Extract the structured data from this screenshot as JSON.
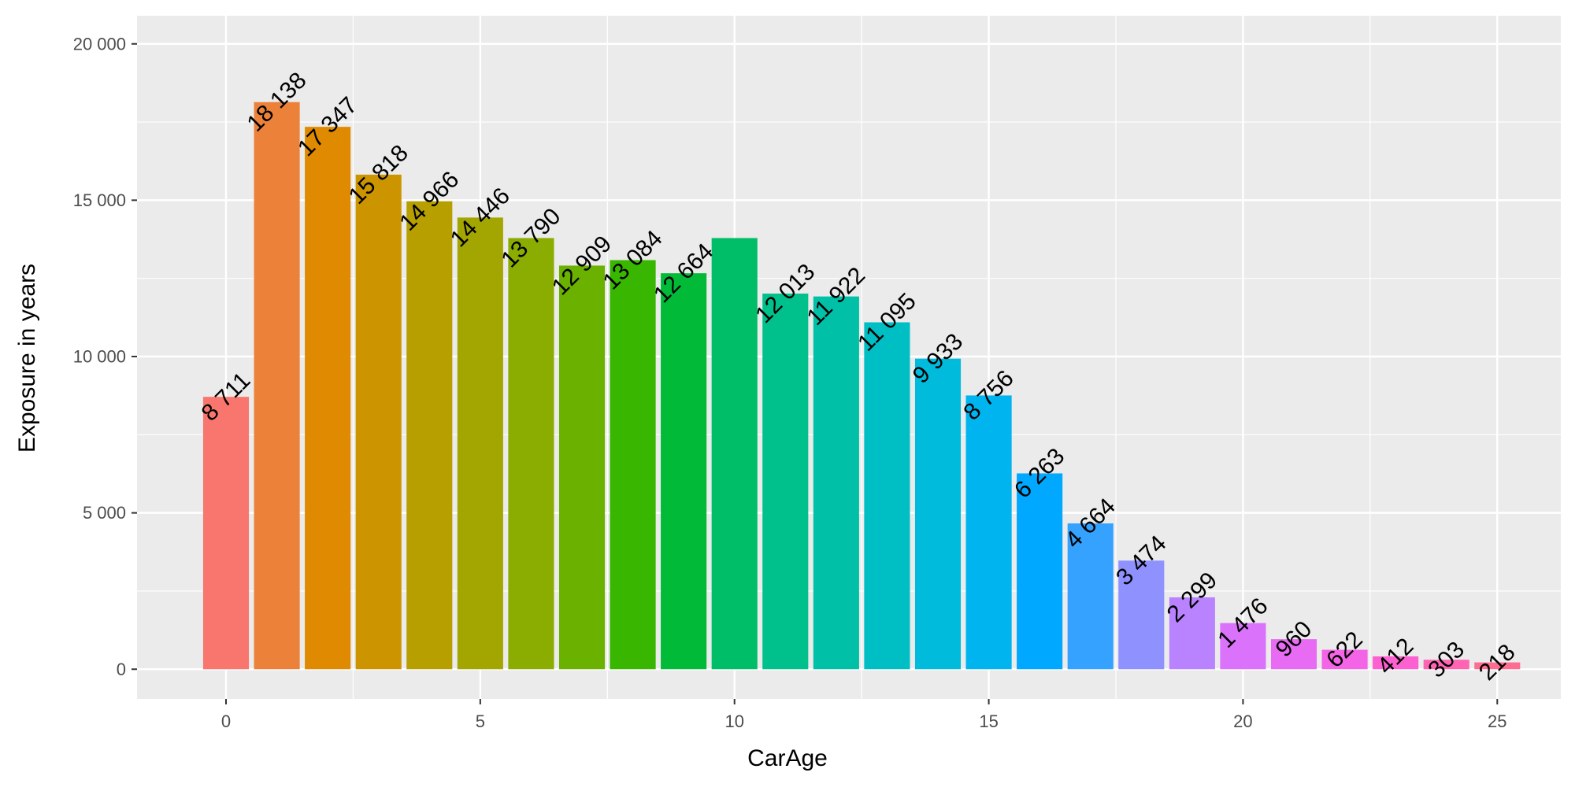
{
  "chart_data": {
    "type": "bar",
    "title": "",
    "xlabel": "CarAge",
    "ylabel": "Exposure in years",
    "x": [
      0,
      1,
      2,
      3,
      4,
      5,
      6,
      7,
      8,
      9,
      10,
      11,
      12,
      13,
      14,
      15,
      16,
      17,
      18,
      19,
      20,
      21,
      22,
      23,
      24,
      25
    ],
    "values": [
      8711,
      18138,
      17347,
      15818,
      14966,
      14446,
      13790,
      12909,
      13084,
      12664,
      13790,
      12013,
      11922,
      11095,
      9933,
      8756,
      6263,
      4664,
      3474,
      2299,
      1476,
      960,
      622,
      412,
      303,
      218
    ],
    "value_labels": [
      "8 711",
      "18 138",
      "17 347",
      "15 818",
      "14 966",
      "14 446",
      "13 790",
      "12 909",
      "13 084",
      "12 664",
      "",
      "12 013",
      "11 922",
      "11 095",
      "9 933",
      "8 756",
      "6 263",
      "4 664",
      "3 474",
      "2 299",
      "1 476",
      "960",
      "622",
      "412",
      "303",
      "218"
    ],
    "bar_colors": [
      "#F8766D",
      "#EC8239",
      "#DF8A00",
      "#CC9500",
      "#B79F00",
      "#A3A500",
      "#8BAC00",
      "#6BB100",
      "#39B600",
      "#00BA38",
      "#00BE67",
      "#00C08B",
      "#00C1A7",
      "#00BFC4",
      "#00BBDC",
      "#00B4EF",
      "#00A9FF",
      "#35A2FF",
      "#8F91FF",
      "#B983FF",
      "#DB72FB",
      "#E76BF3",
      "#F365E6",
      "#FD61D1",
      "#FF64B3",
      "#FF6C91"
    ],
    "xlim": [
      -1.75,
      26.25
    ],
    "ylim": [
      -950,
      20900
    ],
    "x_ticks": [
      0,
      5,
      10,
      15,
      20,
      25
    ],
    "x_tick_labels": [
      "0",
      "5",
      "10",
      "15",
      "20",
      "25"
    ],
    "y_ticks": [
      0,
      5000,
      10000,
      15000,
      20000
    ],
    "y_tick_labels": [
      "0",
      "5 000",
      "10 000",
      "15 000",
      "20 000"
    ],
    "grid": true,
    "panel_background": "#EBEBEB",
    "grid_color": "#FFFFFF",
    "legend": "none"
  }
}
